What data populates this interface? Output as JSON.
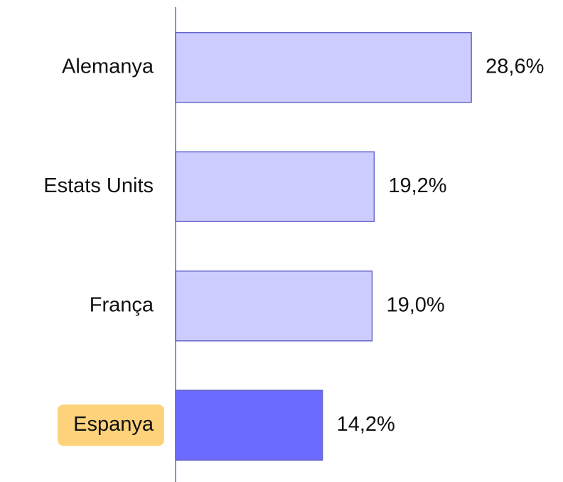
{
  "chart_data": {
    "type": "barh",
    "categories": [
      "Alemanya",
      "Estats Units",
      "França",
      "Espanya"
    ],
    "values": [
      28.6,
      19.2,
      19.0,
      14.2
    ],
    "value_labels": [
      "28,6%",
      "19,2%",
      "19,0%",
      "14,2%"
    ],
    "colors": [
      "#ccccff",
      "#ccccff",
      "#ccccff",
      "#6b6bff"
    ],
    "label_backgrounds": [
      null,
      null,
      null,
      "#fdd27a"
    ]
  }
}
